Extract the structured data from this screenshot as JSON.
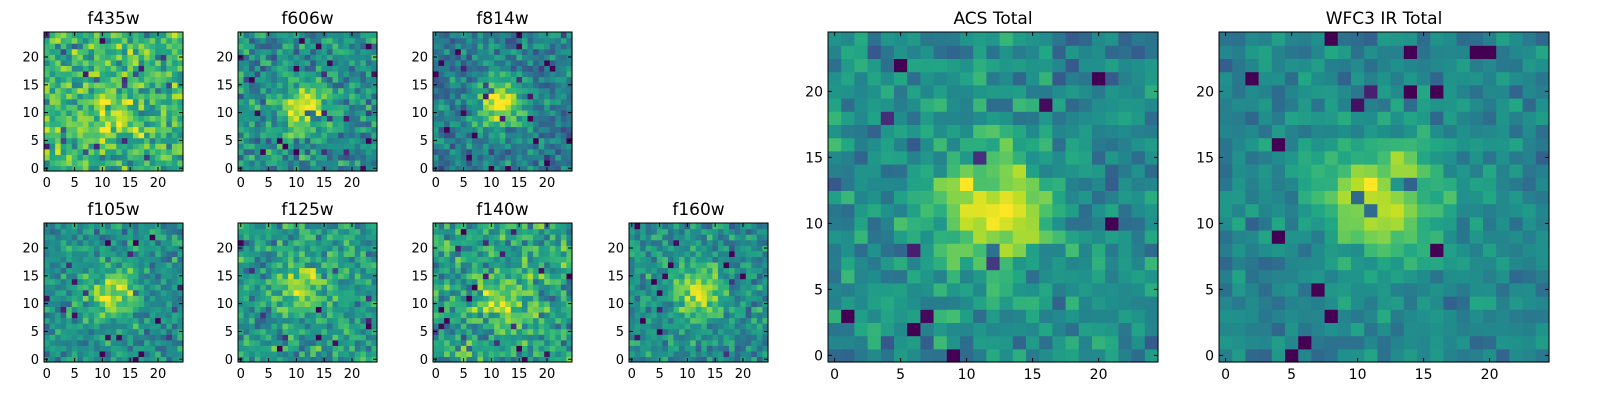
{
  "figure": {
    "colormap": "viridis",
    "colors": {
      "low": "#440154",
      "mid": "#21918c",
      "high": "#fde725",
      "frame": "#000000",
      "background": "#ffffff"
    }
  },
  "chart_data": [
    {
      "type": "heatmap",
      "title": "f435w",
      "xticks": [
        0,
        5,
        10,
        15,
        20
      ],
      "yticks": [
        0,
        5,
        10,
        15,
        20
      ],
      "xlim": [
        -0.5,
        24.5
      ],
      "ylim": [
        -0.5,
        24.5
      ],
      "grid_size": 25,
      "source_center": [
        11,
        10
      ],
      "source_strength": 0.2,
      "noise": 0.32,
      "base": 0.66,
      "seed": 11
    },
    {
      "type": "heatmap",
      "title": "f606w",
      "xticks": [
        0,
        5,
        10,
        15,
        20
      ],
      "yticks": [
        0,
        5,
        10,
        15,
        20
      ],
      "xlim": [
        -0.5,
        24.5
      ],
      "ylim": [
        -0.5,
        24.5
      ],
      "grid_size": 25,
      "source_center": [
        11.5,
        11
      ],
      "source_strength": 0.45,
      "noise": 0.28,
      "base": 0.5,
      "seed": 23
    },
    {
      "type": "heatmap",
      "title": "f814w",
      "xticks": [
        0,
        5,
        10,
        15,
        20
      ],
      "yticks": [
        0,
        5,
        10,
        15,
        20
      ],
      "xlim": [
        -0.5,
        24.5
      ],
      "ylim": [
        -0.5,
        24.5
      ],
      "grid_size": 25,
      "source_center": [
        11.5,
        12
      ],
      "source_strength": 0.55,
      "noise": 0.26,
      "base": 0.42,
      "seed": 37
    },
    {
      "type": "heatmap",
      "title": "f105w",
      "xticks": [
        0,
        5,
        10,
        15,
        20
      ],
      "yticks": [
        0,
        5,
        10,
        15,
        20
      ],
      "xlim": [
        -0.5,
        24.5
      ],
      "ylim": [
        -0.5,
        24.5
      ],
      "grid_size": 25,
      "source_center": [
        12,
        12
      ],
      "source_strength": 0.4,
      "noise": 0.24,
      "base": 0.5,
      "seed": 41
    },
    {
      "type": "heatmap",
      "title": "f125w",
      "xticks": [
        0,
        5,
        10,
        15,
        20
      ],
      "yticks": [
        0,
        5,
        10,
        15,
        20
      ],
      "xlim": [
        -0.5,
        24.5
      ],
      "ylim": [
        -0.5,
        24.5
      ],
      "grid_size": 25,
      "source_center": [
        11,
        13
      ],
      "source_strength": 0.3,
      "noise": 0.28,
      "base": 0.55,
      "seed": 53
    },
    {
      "type": "heatmap",
      "title": "f140w",
      "xticks": [
        0,
        5,
        10,
        15,
        20
      ],
      "yticks": [
        0,
        5,
        10,
        15,
        20
      ],
      "xlim": [
        -0.5,
        24.5
      ],
      "ylim": [
        -0.5,
        24.5
      ],
      "grid_size": 25,
      "source_center": [
        12,
        11
      ],
      "source_strength": 0.3,
      "noise": 0.3,
      "base": 0.58,
      "seed": 67
    },
    {
      "type": "heatmap",
      "title": "f160w",
      "xticks": [
        0,
        5,
        10,
        15,
        20
      ],
      "yticks": [
        0,
        5,
        10,
        15,
        20
      ],
      "xlim": [
        -0.5,
        24.5
      ],
      "ylim": [
        -0.5,
        24.5
      ],
      "grid_size": 25,
      "source_center": [
        12,
        12
      ],
      "source_strength": 0.4,
      "noise": 0.24,
      "base": 0.5,
      "seed": 79
    },
    {
      "type": "heatmap",
      "title": "ACS Total",
      "xticks": [
        0,
        5,
        10,
        15,
        20
      ],
      "yticks": [
        0,
        5,
        10,
        15,
        20
      ],
      "xlim": [
        -0.5,
        24.5
      ],
      "ylim": [
        -0.5,
        24.5
      ],
      "grid_size": 25,
      "source_center": [
        12,
        11
      ],
      "source_strength": 0.5,
      "noise": 0.22,
      "base": 0.48,
      "seed": 97
    },
    {
      "type": "heatmap",
      "title": "WFC3 IR Total",
      "xticks": [
        0,
        5,
        10,
        15,
        20
      ],
      "yticks": [
        0,
        5,
        10,
        15,
        20
      ],
      "xlim": [
        -0.5,
        24.5
      ],
      "ylim": [
        -0.5,
        24.5
      ],
      "grid_size": 25,
      "source_center": [
        12,
        12
      ],
      "source_strength": 0.5,
      "noise": 0.16,
      "base": 0.46,
      "seed": 113
    }
  ]
}
